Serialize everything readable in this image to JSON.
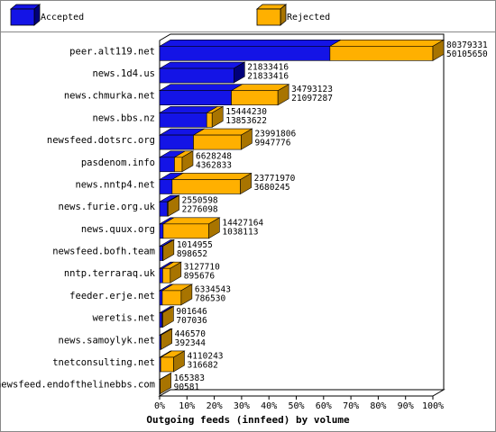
{
  "chart_data": {
    "type": "bar3d_stacked_horizontal",
    "x_label": "Outgoing feeds (innfeed) by volume",
    "categories": [
      "peer.alt119.net",
      "news.1d4.us",
      "news.chmurka.net",
      "news.bbs.nz",
      "newsfeed.dotsrc.org",
      "pasdenom.info",
      "news.nntp4.net",
      "news.furie.org.uk",
      "news.quux.org",
      "newsfeed.bofh.team",
      "nntp.terraraq.uk",
      "feeder.erje.net",
      "weretis.net",
      "news.samoylyk.net",
      "tnetconsulting.net",
      "newsfeed.endofthelinebbs.com"
    ],
    "totals": [
      80379331,
      21833416,
      34793123,
      15444230,
      23991806,
      6628248,
      23771970,
      2550598,
      14427164,
      1014955,
      3127710,
      6334543,
      901646,
      446570,
      4110243,
      165383
    ],
    "series": [
      {
        "name": "Accepted",
        "color": "#1414e6",
        "side_color": "#00007a",
        "values": [
          50105650,
          21833416,
          21097287,
          13853622,
          9947776,
          4362833,
          3680245,
          2276098,
          1038113,
          898652,
          895676,
          786530,
          707036,
          392344,
          316682,
          90581
        ]
      },
      {
        "name": "Rejected",
        "color": "#ffb000",
        "side_color": "#a87400",
        "values": [
          30273681,
          0,
          13695836,
          1590608,
          14044030,
          2265415,
          20091725,
          274500,
          13389051,
          116303,
          2232034,
          5548013,
          194610,
          54226,
          3793561,
          74802
        ]
      }
    ],
    "xlim": [
      0,
      80379331
    ],
    "xticks": [
      {
        "value": 0,
        "label": "0%"
      },
      {
        "value": 8037933.1,
        "label": "10%"
      },
      {
        "value": 16075866.2,
        "label": "20%"
      },
      {
        "value": 24113799.3,
        "label": "30%"
      },
      {
        "value": 32151732.4,
        "label": "40%"
      },
      {
        "value": 40189665.5,
        "label": "50%"
      },
      {
        "value": 48227598.6,
        "label": "60%"
      },
      {
        "value": 56265531.7,
        "label": "70%"
      },
      {
        "value": 64303464.8,
        "label": "80%"
      },
      {
        "value": 72341397.9,
        "label": "90%"
      },
      {
        "value": 80379331,
        "label": "100%"
      }
    ]
  }
}
